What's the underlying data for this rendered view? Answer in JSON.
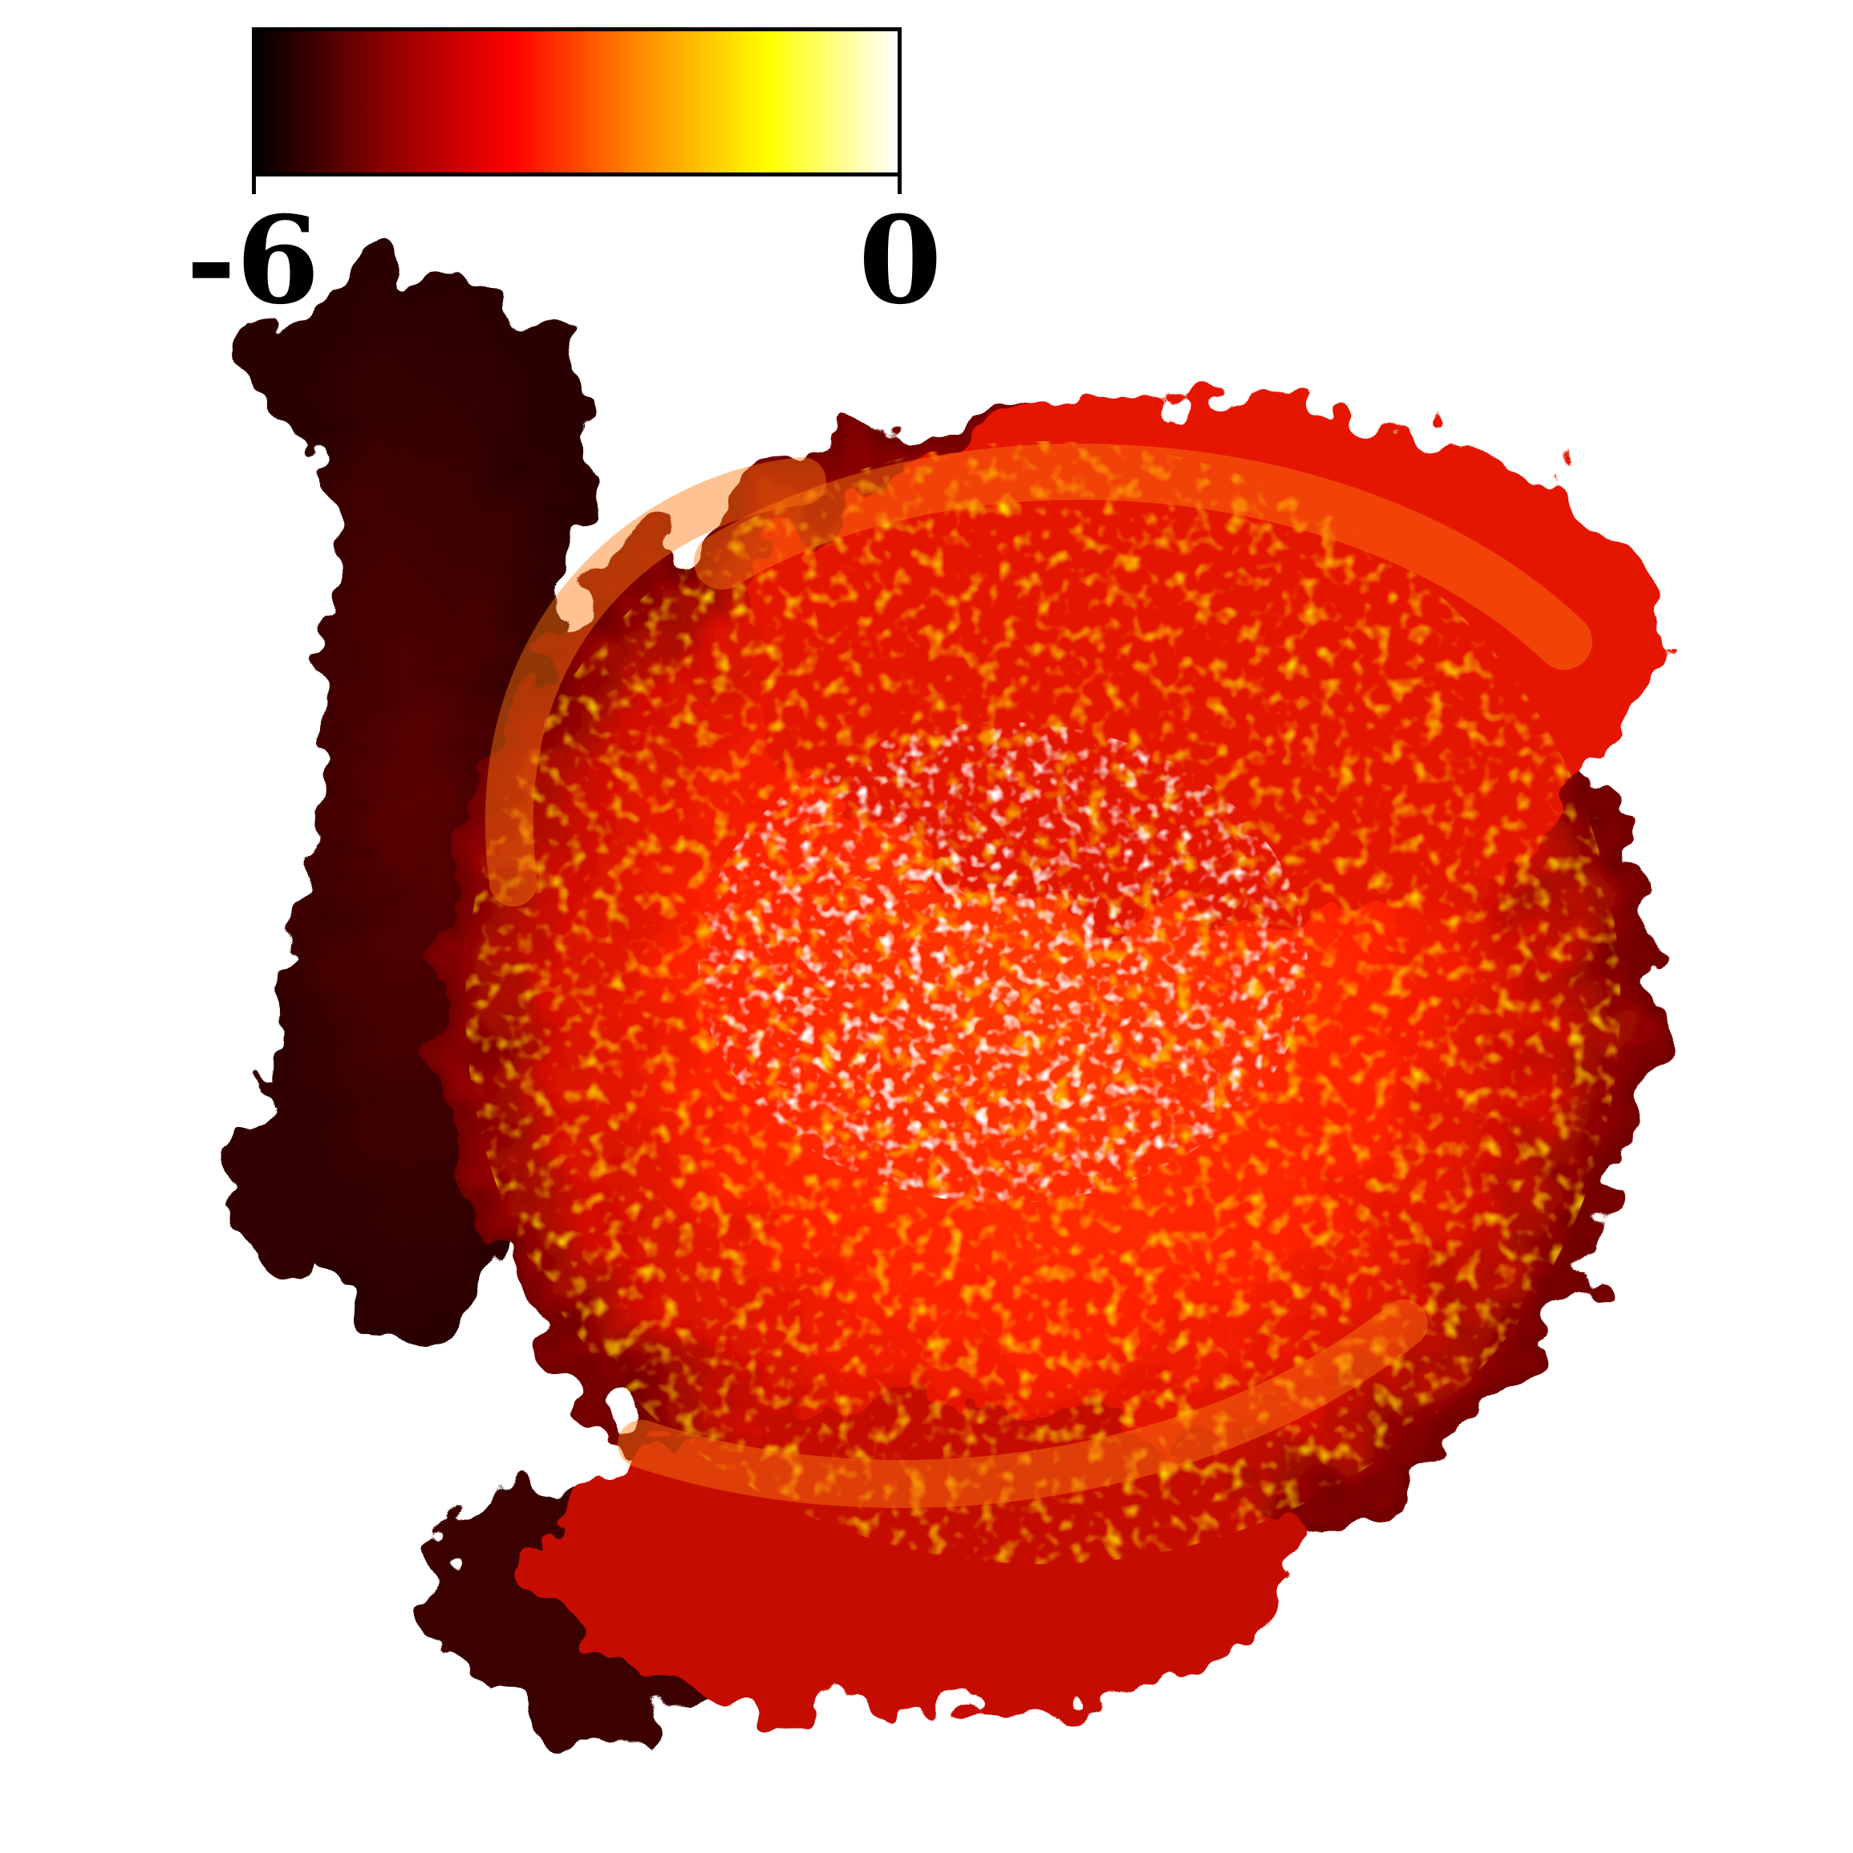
{
  "colorbar": {
    "min_label": "-6",
    "max_label": "0",
    "min_value": -6,
    "max_value": 0,
    "colormap": "hot",
    "stops": [
      "#000000",
      "#8b0000",
      "#ff0000",
      "#ff8c00",
      "#ffff00",
      "#ffffff"
    ]
  },
  "background_color": "#ffffff",
  "image": {
    "subject": "galaxy-disk-map"
  }
}
